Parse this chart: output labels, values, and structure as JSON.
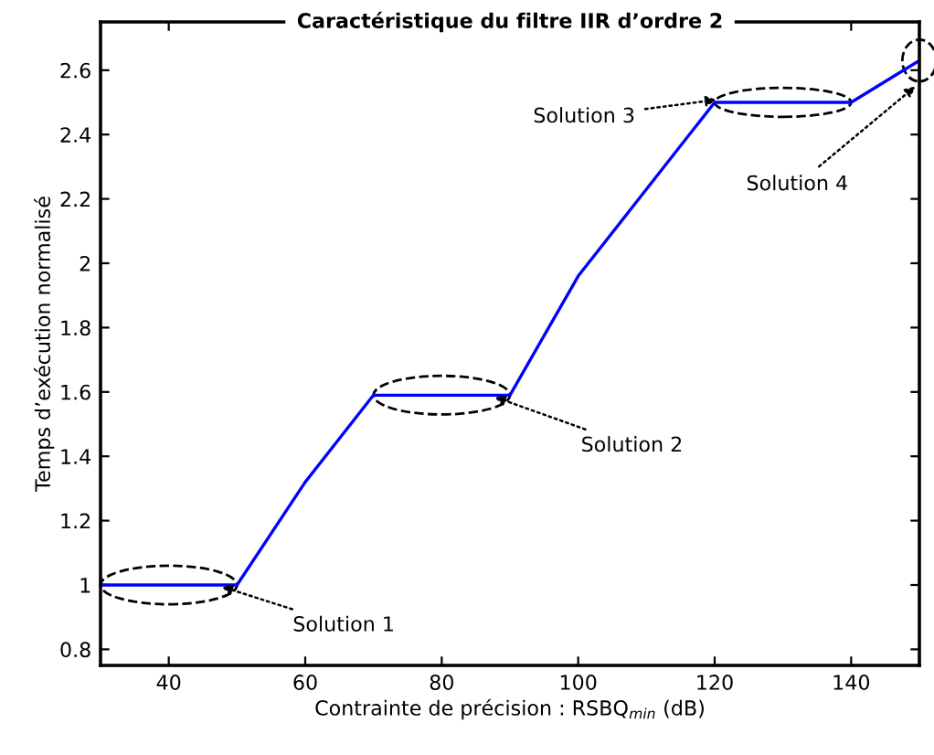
{
  "chart_data": {
    "type": "line",
    "title": "Caractéristique du filtre IIR d’ordre 2",
    "xlabel": "Contrainte de précision : RSBQ$_{min}$ (dB)",
    "ylabel": "Temps d’exécution normalisé",
    "x": [
      30,
      50,
      60,
      70,
      90,
      100,
      120,
      140,
      150
    ],
    "series": [
      {
        "color": "#0000ff",
        "values": [
          1,
          1,
          1.32,
          1.59,
          1.59,
          1.96,
          2.5,
          2.5,
          2.63
        ]
      }
    ],
    "xlim": [
      30,
      150
    ],
    "xticks": [
      40,
      60,
      80,
      100,
      120,
      140
    ],
    "ylim": [
      0.75,
      2.75
    ],
    "yticks": [
      0.8,
      1,
      1.2,
      1.4,
      1.6,
      1.8,
      2,
      2.2,
      2.4,
      2.6
    ],
    "grid": false,
    "marker": "none",
    "line_style": "solid",
    "annotations": [
      {
        "text": "Solution 1",
        "x": 47,
        "y": 1
      },
      {
        "text": "Solution 2",
        "x": 87,
        "y": 1.59
      },
      {
        "text": "Solution 3",
        "x": 121,
        "y": 2.51
      },
      {
        "text": "Solution 4",
        "x": 150,
        "y": 2.56
      }
    ]
  }
}
